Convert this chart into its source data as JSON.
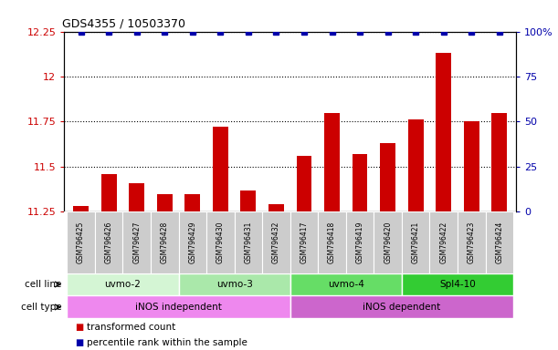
{
  "title": "GDS4355 / 10503370",
  "samples": [
    "GSM796425",
    "GSM796426",
    "GSM796427",
    "GSM796428",
    "GSM796429",
    "GSM796430",
    "GSM796431",
    "GSM796432",
    "GSM796417",
    "GSM796418",
    "GSM796419",
    "GSM796420",
    "GSM796421",
    "GSM796422",
    "GSM796423",
    "GSM796424"
  ],
  "bar_values": [
    11.28,
    11.46,
    11.41,
    11.35,
    11.35,
    11.72,
    11.37,
    11.29,
    11.56,
    11.8,
    11.57,
    11.63,
    11.76,
    12.13,
    11.75,
    11.8
  ],
  "bar_color": "#CC0000",
  "percentile_color": "#0000AA",
  "ylim_left": [
    11.25,
    12.25
  ],
  "ylim_right": [
    0,
    100
  ],
  "yticks_left": [
    11.25,
    11.5,
    11.75,
    12.0,
    12.25
  ],
  "yticks_right": [
    0,
    25,
    50,
    75,
    100
  ],
  "ytick_labels_left": [
    "11.25",
    "11.5",
    "11.75",
    "12",
    "12.25"
  ],
  "ytick_labels_right": [
    "0",
    "25",
    "50",
    "75",
    "100%"
  ],
  "cell_lines": [
    {
      "label": "uvmo-2",
      "start": 0,
      "end": 4,
      "color": "#d4f5d4"
    },
    {
      "label": "uvmo-3",
      "start": 4,
      "end": 8,
      "color": "#aae8aa"
    },
    {
      "label": "uvmo-4",
      "start": 8,
      "end": 12,
      "color": "#66dd66"
    },
    {
      "label": "Spl4-10",
      "start": 12,
      "end": 16,
      "color": "#33cc33"
    }
  ],
  "cell_types": [
    {
      "label": "iNOS independent",
      "start": 0,
      "end": 8,
      "color": "#ee88ee"
    },
    {
      "label": "iNOS dependent",
      "start": 8,
      "end": 16,
      "color": "#cc66cc"
    }
  ],
  "legend_items": [
    {
      "label": "transformed count",
      "color": "#CC0000"
    },
    {
      "label": "percentile rank within the sample",
      "color": "#0000AA"
    }
  ],
  "bg_color": "#ffffff",
  "sample_bg_color": "#cccccc"
}
